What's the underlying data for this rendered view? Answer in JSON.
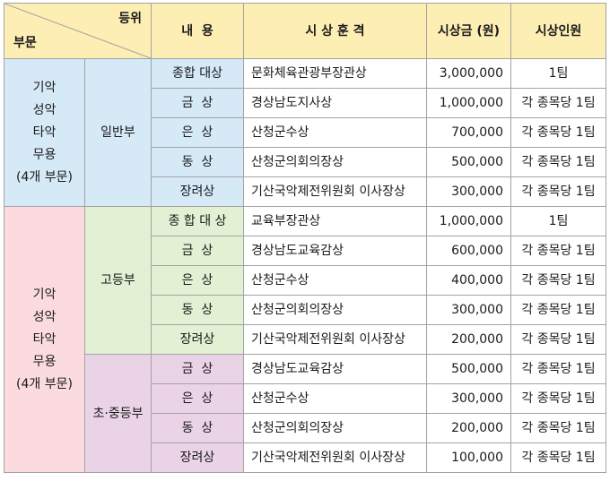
{
  "header": {
    "corner_top": "등위",
    "corner_bottom": "부문",
    "col_content": "내  용",
    "col_award": "시 상 훈 격",
    "col_amount": "시상금 (원)",
    "col_people": "시상인원"
  },
  "sections": [
    {
      "label_lines": [
        "기악",
        "성악",
        "타악",
        "무용",
        "(4개 부문)"
      ]
    },
    {
      "label_lines": [
        "기악",
        "성악",
        "타악",
        "무용",
        "(4개 부문)"
      ]
    }
  ],
  "divisions": [
    {
      "name": "일반부",
      "rows": [
        {
          "level": "종합 대상",
          "award": "문화체육관광부장관상",
          "amount": "3,000,000",
          "people": "1팀"
        },
        {
          "level": "금  상",
          "award": "경상남도지사상",
          "amount": "1,000,000",
          "people": "각 종목당 1팀"
        },
        {
          "level": "은  상",
          "award": "산청군수상",
          "amount": "700,000",
          "people": "각 종목당 1팀"
        },
        {
          "level": "동  상",
          "award": "산청군의회의장상",
          "amount": "500,000",
          "people": "각 종목당 1팀"
        },
        {
          "level": "장려상",
          "award": "기산국악제전위원회 이사장상",
          "amount": "300,000",
          "people": "각 종목당 1팀"
        }
      ]
    },
    {
      "name": "고등부",
      "rows": [
        {
          "level": "종 합 대 상",
          "award": "교육부장관상",
          "amount": "1,000,000",
          "people": "1팀"
        },
        {
          "level": "금  상",
          "award": "경상남도교육감상",
          "amount": "600,000",
          "people": "각 종목당 1팀"
        },
        {
          "level": "은  상",
          "award": "산청군수상",
          "amount": "400,000",
          "people": "각 종목당 1팀"
        },
        {
          "level": "동  상",
          "award": "산청군의회의장상",
          "amount": "300,000",
          "people": "각 종목당 1팀"
        },
        {
          "level": "장려상",
          "award": "기산국악제전위원회 이사장상",
          "amount": "200,000",
          "people": "각 종목당 1팀"
        }
      ]
    },
    {
      "name": "초·중등부",
      "rows": [
        {
          "level": "금  상",
          "award": "경상남도교육감상",
          "amount": "500,000",
          "people": "각 종목당 1팀"
        },
        {
          "level": "은  상",
          "award": "산청군수상",
          "amount": "300,000",
          "people": "각 종목당 1팀"
        },
        {
          "level": "동  상",
          "award": "산청군의회의장상",
          "amount": "200,000",
          "people": "각 종목당 1팀"
        },
        {
          "level": "장려상",
          "award": "기산국악제전위원회 이사장상",
          "amount": "100,000",
          "people": "각 종목당 1팀"
        }
      ]
    }
  ],
  "colors": {
    "header_bg": "#fdeeb4",
    "section1_bg": "#d5e9f7",
    "section2_bg": "#fbdbdf",
    "division_general_bg": "#d5e9f7",
    "division_high_bg": "#e2f0d3",
    "division_elem_mid_bg": "#ebd3e7"
  }
}
